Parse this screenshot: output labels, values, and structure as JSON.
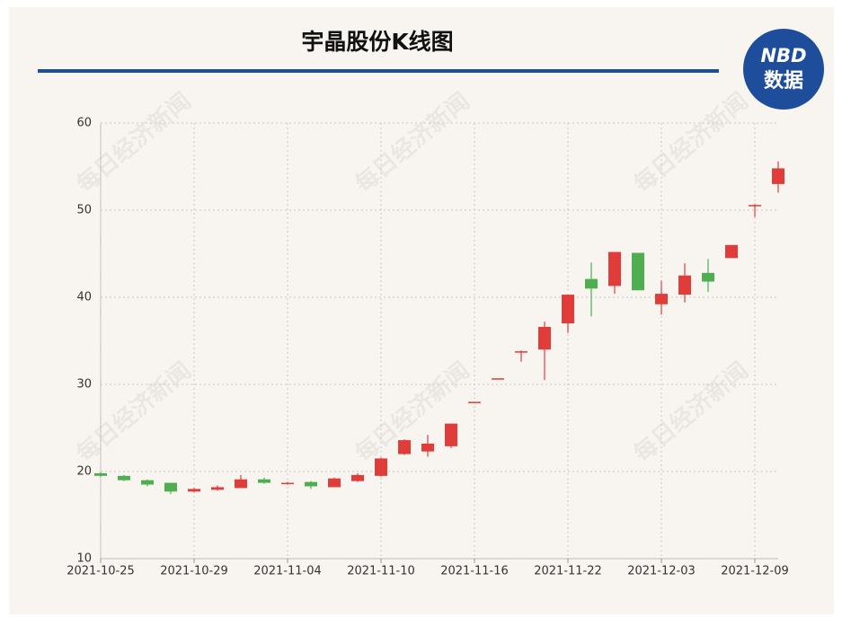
{
  "chart_data": {
    "type": "candlestick",
    "title": "宇晶股份K线图",
    "logo": {
      "top": "NBD",
      "bottom": "数据"
    },
    "watermark": "每日经济新闻",
    "categories": [
      "2021-10-25",
      null,
      null,
      null,
      "2021-10-29",
      null,
      null,
      null,
      "2021-11-04",
      null,
      null,
      null,
      "2021-11-10",
      null,
      null,
      null,
      "2021-11-16",
      null,
      null,
      null,
      "2021-11-22",
      null,
      null,
      null,
      "2021-12-03",
      null,
      null,
      null,
      "2021-12-09",
      null
    ],
    "open": [
      19.8,
      19.5,
      19.0,
      18.7,
      17.7,
      17.9,
      18.1,
      19.1,
      18.6,
      18.8,
      18.2,
      18.9,
      19.5,
      22.0,
      22.3,
      22.9,
      28.0,
      30.7,
      33.7,
      34.0,
      37.0,
      42.1,
      41.3,
      45.1,
      39.2,
      40.3,
      42.8,
      44.5,
      50.6,
      53.0
    ],
    "high": [
      19.9,
      19.6,
      19.1,
      18.7,
      18.1,
      18.4,
      19.6,
      19.3,
      18.8,
      18.9,
      19.3,
      19.8,
      21.6,
      23.7,
      24.2,
      25.5,
      28.0,
      30.7,
      33.9,
      37.2,
      40.3,
      44.0,
      45.2,
      45.1,
      41.9,
      43.9,
      44.4,
      46.0,
      50.7,
      55.6
    ],
    "low": [
      19.4,
      18.9,
      18.3,
      17.4,
      17.6,
      17.8,
      18.1,
      18.6,
      18.5,
      18.0,
      18.2,
      18.8,
      19.4,
      21.9,
      21.7,
      22.7,
      28.0,
      30.7,
      32.6,
      30.5,
      35.9,
      37.8,
      40.4,
      40.8,
      38.0,
      39.4,
      40.6,
      44.5,
      49.2,
      52.0
    ],
    "close": [
      19.5,
      19.0,
      18.5,
      17.7,
      18.0,
      18.2,
      19.1,
      18.7,
      18.7,
      18.3,
      19.2,
      19.6,
      21.5,
      23.6,
      23.2,
      25.5,
      28.0,
      30.7,
      33.8,
      36.6,
      40.3,
      41.0,
      45.2,
      40.8,
      40.4,
      42.5,
      41.8,
      46.0,
      50.6,
      54.8
    ],
    "up_color": "#e03c3a",
    "down_color": "#4daf4f",
    "ylim": [
      10,
      60
    ],
    "yticks": [
      10,
      20,
      30,
      40,
      50,
      60
    ],
    "grid": true
  }
}
